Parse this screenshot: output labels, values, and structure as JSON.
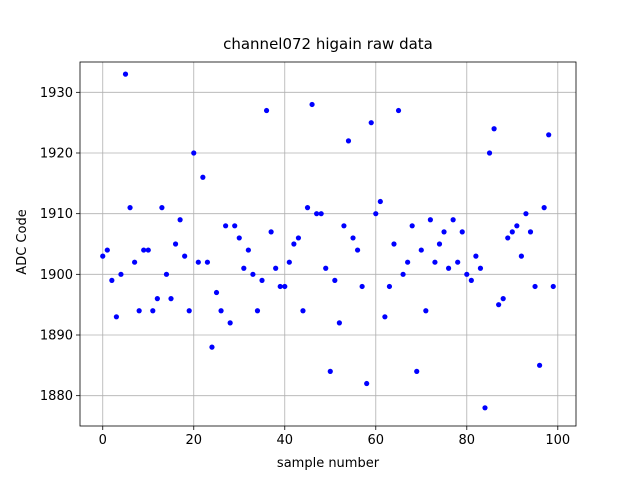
{
  "chart_data": {
    "type": "scatter",
    "title": "channel072 higain raw data",
    "xlabel": "sample number",
    "ylabel": "ADC Code",
    "xlim": [
      -5,
      104
    ],
    "ylim": [
      1875,
      1935
    ],
    "xticks": [
      0,
      20,
      40,
      60,
      80,
      100
    ],
    "yticks": [
      1880,
      1890,
      1900,
      1910,
      1920,
      1930
    ],
    "grid": true,
    "marker_color": "#0000ff",
    "series": [
      {
        "x": [
          0,
          1,
          2,
          3,
          4,
          5,
          6,
          7,
          8,
          9,
          10,
          11,
          12,
          13,
          14,
          15,
          16,
          17,
          18,
          19,
          20,
          21,
          22,
          23,
          24,
          25,
          26,
          27,
          28,
          29,
          30,
          31,
          32,
          33,
          34,
          35,
          36,
          37,
          38,
          39,
          40,
          41,
          42,
          43,
          44,
          45,
          46,
          47,
          48,
          49,
          50,
          51,
          52,
          53,
          54,
          55,
          56,
          57,
          58,
          59,
          60,
          61,
          62,
          63,
          64,
          65,
          66,
          67,
          68,
          69,
          70,
          71,
          72,
          73,
          74,
          75,
          76,
          77,
          78,
          79,
          80,
          81,
          82,
          83,
          84,
          85,
          86,
          87,
          88,
          89,
          90,
          91,
          92,
          93,
          94,
          95,
          96,
          97,
          98,
          99
        ],
        "y": [
          1903,
          1904,
          1899,
          1893,
          1900,
          1933,
          1911,
          1902,
          1894,
          1904,
          1904,
          1894,
          1896,
          1911,
          1900,
          1896,
          1905,
          1909,
          1903,
          1894,
          1920,
          1902,
          1916,
          1902,
          1888,
          1897,
          1894,
          1908,
          1892,
          1908,
          1906,
          1901,
          1904,
          1900,
          1894,
          1899,
          1927,
          1907,
          1901,
          1898,
          1898,
          1902,
          1905,
          1906,
          1894,
          1911,
          1928,
          1910,
          1910,
          1901,
          1884,
          1899,
          1892,
          1908,
          1922,
          1906,
          1904,
          1898,
          1882,
          1925,
          1910,
          1912,
          1893,
          1898,
          1905,
          1927,
          1900,
          1902,
          1908,
          1884,
          1904,
          1894,
          1909,
          1902,
          1905,
          1907,
          1901,
          1909,
          1902,
          1907,
          1900,
          1899,
          1903,
          1901,
          1878,
          1920,
          1924,
          1895,
          1896,
          1906,
          1907,
          1908,
          1903,
          1910,
          1907,
          1898,
          1885,
          1911,
          1923,
          1898
        ]
      }
    ]
  }
}
